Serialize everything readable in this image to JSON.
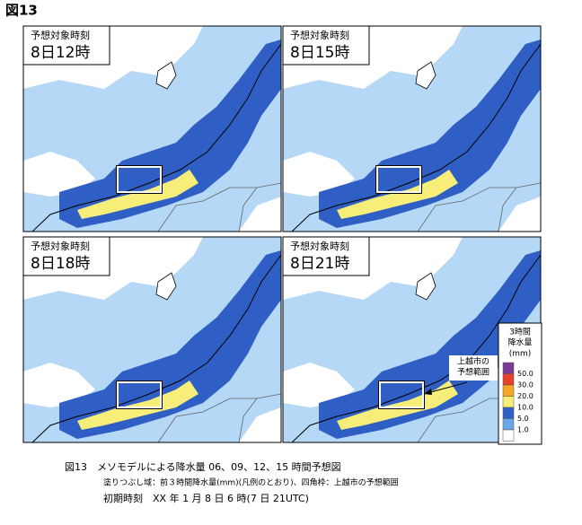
{
  "figure_label": "図13",
  "panels": [
    {
      "label": "予想対象時刻",
      "time": "8日12時"
    },
    {
      "label": "予想対象時刻",
      "time": "8日15時"
    },
    {
      "label": "予想対象時刻",
      "time": "8日18時"
    },
    {
      "label": "予想対象時刻",
      "time": "8日21時"
    }
  ],
  "legend": {
    "title_lines": [
      "3時間",
      "降水量",
      "(mm)"
    ],
    "colors": [
      "#7a3b96",
      "#e8402a",
      "#f5a623",
      "#f7ee7a",
      "#2f5fc4",
      "#6aa6e6",
      "#ffffff"
    ],
    "labels": [
      "50.0",
      "30.0",
      "20.0",
      "10.0",
      "5.0",
      "1.0"
    ]
  },
  "annotation": [
    "上越市の",
    "予想範囲"
  ],
  "caption": {
    "line1": "図13　メソモデルによる降水量 06、09、12、15 時間予想図",
    "line2": "塗りつぶし域：前３時間降水量(mm)(凡例のとおり)、四角枠：上越市の予想範囲",
    "line3": "初期時刻　XX 年 1 月 8 日 6 時(7 日 21UTC)"
  }
}
